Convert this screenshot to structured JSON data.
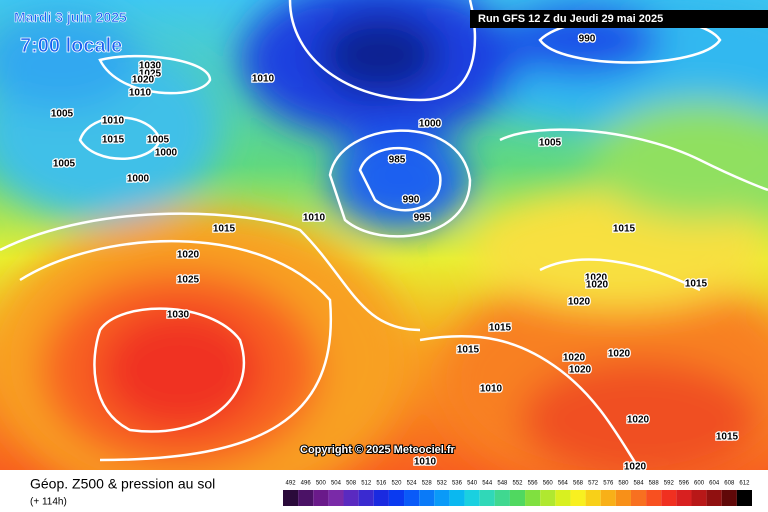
{
  "header": {
    "date": "Mardi 3 juin 2025",
    "time": "7:00 locale",
    "run": "Run GFS 12 Z du Jeudi 29 mai 2025"
  },
  "copyright": "Copyright © 2025 Meteociel.fr",
  "footer": {
    "title": "Géop. Z500 & pression au sol",
    "lead": "(+ 114h)"
  },
  "isobar_labels": [
    1030,
    1025,
    1020,
    1010,
    1010,
    1005,
    1010,
    1015,
    1005,
    1000,
    1005,
    1000,
    1000,
    1005,
    985,
    990,
    995,
    1010,
    1015,
    1020,
    1025,
    1030,
    1015,
    1020,
    1020,
    1020,
    1015,
    1015,
    1015,
    1020,
    1020,
    1020,
    1010,
    1020,
    1015,
    1020,
    1010,
    990
  ],
  "colorbar": {
    "ticks": [
      492,
      496,
      500,
      504,
      508,
      512,
      516,
      520,
      524,
      528,
      532,
      536,
      540,
      544,
      548,
      552,
      556,
      560,
      564,
      568,
      572,
      576,
      580,
      584,
      588,
      592,
      596,
      600,
      604,
      608,
      612
    ],
    "colors": [
      "#2a0a3a",
      "#4b1266",
      "#6a1a8a",
      "#7a2aa8",
      "#5a2ac0",
      "#3a2ad0",
      "#1a2ae0",
      "#0a3af0",
      "#0a5af8",
      "#0a7af8",
      "#0a9af8",
      "#0ab8f0",
      "#1ad0e0",
      "#30d8b8",
      "#40d890",
      "#50d860",
      "#80e040",
      "#b0e830",
      "#d8f020",
      "#f8f020",
      "#f8d018",
      "#f8b018",
      "#f89018",
      "#f87020",
      "#f85020",
      "#f03020",
      "#d82020",
      "#b81818",
      "#901010",
      "#600808",
      "#000000"
    ]
  }
}
